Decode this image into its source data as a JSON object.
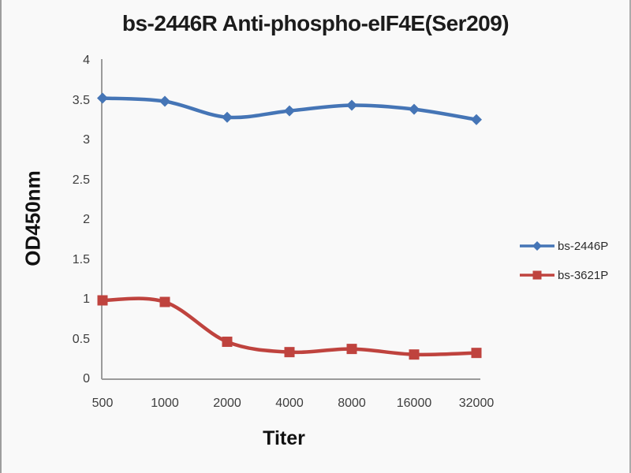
{
  "chart_data": {
    "type": "line",
    "title": "bs-2446R Anti-phospho-eIF4E(Ser209)",
    "xlabel": "Titer",
    "ylabel": "OD450nm",
    "categories": [
      "500",
      "1000",
      "2000",
      "4000",
      "8000",
      "16000",
      "32000"
    ],
    "series": [
      {
        "name": "bs-2446P",
        "marker": "diamond",
        "color": "#4575b6",
        "values": [
          3.53,
          3.49,
          3.29,
          3.37,
          3.44,
          3.39,
          3.26
        ]
      },
      {
        "name": "bs-3621P",
        "marker": "square",
        "color": "#bf433e",
        "values": [
          0.99,
          0.97,
          0.47,
          0.34,
          0.38,
          0.31,
          0.33
        ]
      }
    ],
    "ylim": [
      0,
      4
    ],
    "y_tick_step": 0.5,
    "y_ticks": [
      "4",
      "3.5",
      "3",
      "2.5",
      "2",
      "1.5",
      "1",
      "0.5",
      "0"
    ],
    "grid": false,
    "smooth_lines": true,
    "legend_position": "right",
    "axis_color": "#9b9b9b",
    "tick_color": "#3d3d3d"
  }
}
